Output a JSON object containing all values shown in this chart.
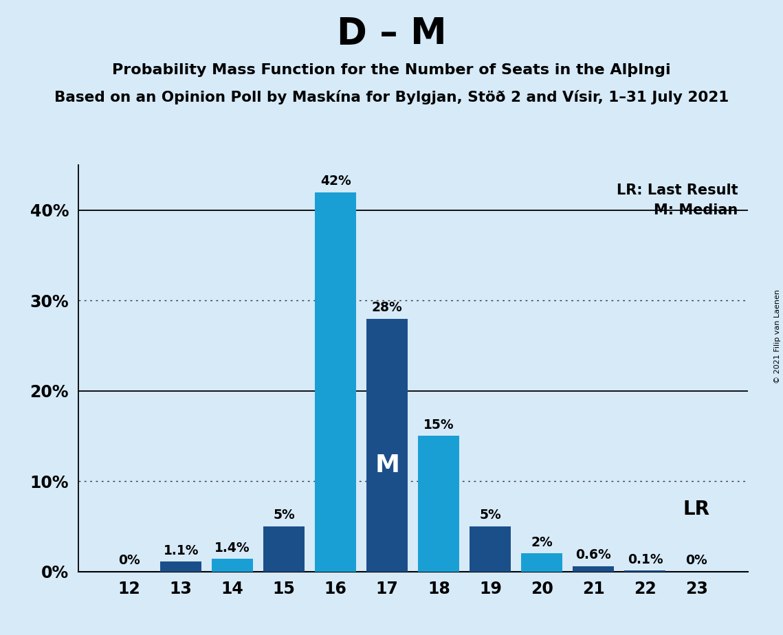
{
  "title_main": "D – M",
  "subtitle1": "Probability Mass Function for the Number of Seats in the AlþIngi",
  "subtitle2": "Based on an Opinion Poll by Maskína for Bylgjan, Stöð 2 and Vísir, 1–31 July 2021",
  "copyright": "© 2021 Filip van Laenen",
  "seats": [
    12,
    13,
    14,
    15,
    16,
    17,
    18,
    19,
    20,
    21,
    22,
    23
  ],
  "values": [
    0.0,
    1.1,
    1.4,
    5.0,
    42.0,
    28.0,
    15.0,
    5.0,
    2.0,
    0.6,
    0.1,
    0.0
  ],
  "labels": [
    "0%",
    "1.1%",
    "1.4%",
    "5%",
    "42%",
    "28%",
    "15%",
    "5%",
    "2%",
    "0.6%",
    "0.1%",
    "0%"
  ],
  "bar_colors": [
    "#1B4F8A",
    "#1B4F8A",
    "#1A9FD4",
    "#1B4F8A",
    "#1A9FD4",
    "#1B4F8A",
    "#1A9FD4",
    "#1B4F8A",
    "#1A9FD4",
    "#1B4F8A",
    "#1B4F8A",
    "#1A9FD4"
  ],
  "median_idx": 5,
  "lr_idx": 11,
  "lr_legend": "LR: Last Result",
  "m_legend": "M: Median",
  "lr_bar_label": "LR",
  "ylim_max": 45,
  "yticks": [
    0,
    10,
    20,
    30,
    40
  ],
  "ytick_labels": [
    "0%",
    "10%",
    "20%",
    "30%",
    "40%"
  ],
  "dotted_ylines": [
    10,
    30
  ],
  "solid_ylines": [
    20,
    40
  ],
  "bg_color": "#d6eaf8"
}
